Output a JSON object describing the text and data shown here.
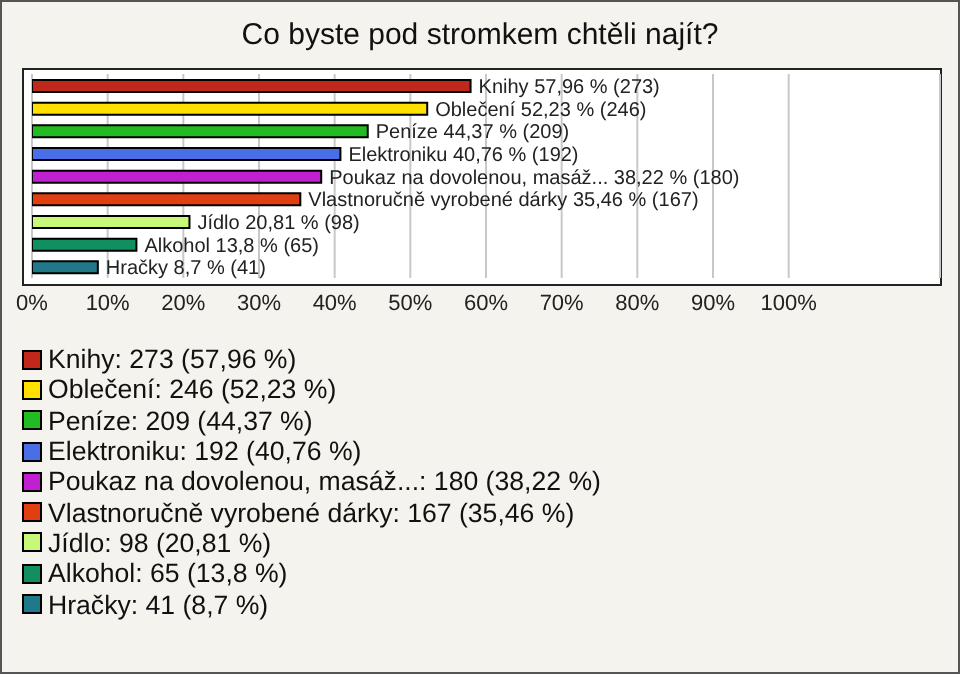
{
  "chart_data": {
    "type": "bar",
    "orientation": "horizontal",
    "title": "Co byste pod stromkem chtěli najít?",
    "categories": [
      "Knihy",
      "Oblečení",
      "Peníze",
      "Elektroniku",
      "Poukaz na dovolenou, masáž...",
      "Vlastnoručně vyrobené dárky",
      "Jídlo",
      "Alkohol",
      "Hračky"
    ],
    "values": [
      57.96,
      52.23,
      44.37,
      40.76,
      38.22,
      35.46,
      20.81,
      13.8,
      8.7
    ],
    "value_labels": [
      "57,96 % (273)",
      "52,23 % (246)",
      "44,37 % (209)",
      "40,76 % (192)",
      "38,22 % (180)",
      "35,46 % (167)",
      "20,81 % (98)",
      "13,8 % (65)",
      "8,7 % (41)"
    ],
    "colors": [
      "#c0281c",
      "#ffe000",
      "#22bb22",
      "#4a6ee8",
      "#c020d0",
      "#e04010",
      "#c8f878",
      "#109060",
      "#207888"
    ],
    "xlim": [
      0,
      120
    ],
    "xticks": [
      {
        "value": 0,
        "label": "0%"
      },
      {
        "value": 10,
        "label": "10%"
      },
      {
        "value": 20,
        "label": "20%"
      },
      {
        "value": 30,
        "label": "30%"
      },
      {
        "value": 40,
        "label": "40%"
      },
      {
        "value": 50,
        "label": "50%"
      },
      {
        "value": 60,
        "label": "60%"
      },
      {
        "value": 70,
        "label": "70%"
      },
      {
        "value": 80,
        "label": "80%"
      },
      {
        "value": 90,
        "label": "90%"
      },
      {
        "value": 100,
        "label": "100%"
      }
    ],
    "grid": "x",
    "annotations": [
      "Knihy: 273 (57,96 %)",
      "Oblečení: 246 (52,23 %)",
      "Peníze: 209 (44,37 %)",
      "Elektroniku: 192 (40,76 %)",
      "Poukaz na dovolenou, masáž...: 180 (38,22 %)",
      "Vlastnoručně vyrobené dárky: 167 (35,46 %)",
      "Jídlo: 98 (20,81 %)",
      "Alkohol: 65 (13,8 %)",
      "Hračky: 41 (8,7 %)"
    ]
  }
}
